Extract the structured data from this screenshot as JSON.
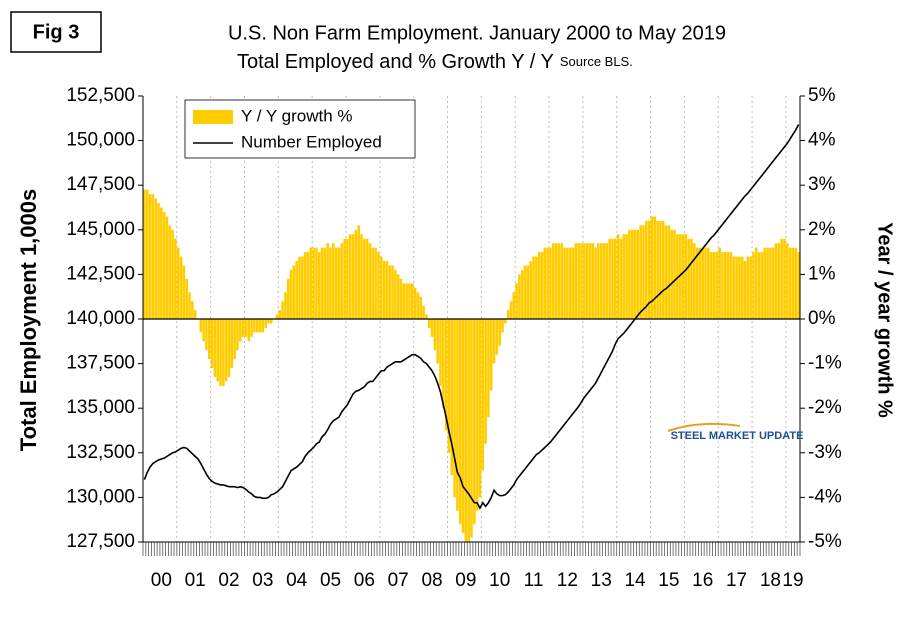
{
  "figure_label": "Fig 3",
  "chart_data": {
    "type": "combo",
    "title": "U.S. Non Farm Employment. January 2000 to May 2019",
    "subtitle": "Total Employed and % Growth Y / Y",
    "source": "Source BLS.",
    "y_label": "Total Employment 1,000s",
    "y2_label": "Year / year growth %",
    "logo": "STEEL MARKET UPDATE",
    "legend": "top-left",
    "ylim": [
      127500,
      152500
    ],
    "yticks": [
      {
        "value": 127500,
        "label": "127,500"
      },
      {
        "value": 130000,
        "label": "130,000"
      },
      {
        "value": 132500,
        "label": "132,500"
      },
      {
        "value": 135000,
        "label": "135,000"
      },
      {
        "value": 137500,
        "label": "137,500"
      },
      {
        "value": 140000,
        "label": "140,000"
      },
      {
        "value": 142500,
        "label": "142,500"
      },
      {
        "value": 145000,
        "label": "145,000"
      },
      {
        "value": 147500,
        "label": "147,500"
      },
      {
        "value": 150000,
        "label": "150,000"
      },
      {
        "value": 152500,
        "label": "152,500"
      }
    ],
    "y2lim": [
      -5,
      5
    ],
    "y2ticks": [
      {
        "value": -5,
        "label": "-5%"
      },
      {
        "value": -4,
        "label": "-4%"
      },
      {
        "value": -3,
        "label": "-3%"
      },
      {
        "value": -2,
        "label": "-2%"
      },
      {
        "value": -1,
        "label": "-1%"
      },
      {
        "value": 0,
        "label": "0%"
      },
      {
        "value": 1,
        "label": "1%"
      },
      {
        "value": 2,
        "label": "2%"
      },
      {
        "value": 3,
        "label": "3%"
      },
      {
        "value": 4,
        "label": "4%"
      },
      {
        "value": 5,
        "label": "5%"
      }
    ],
    "categories": [
      null,
      null,
      null,
      null,
      null,
      null,
      "00",
      null,
      null,
      null,
      null,
      null,
      null,
      null,
      null,
      null,
      null,
      null,
      "01",
      null,
      null,
      null,
      null,
      null,
      null,
      null,
      null,
      null,
      null,
      null,
      "02",
      null,
      null,
      null,
      null,
      null,
      null,
      null,
      null,
      null,
      null,
      null,
      "03",
      null,
      null,
      null,
      null,
      null,
      null,
      null,
      null,
      null,
      null,
      null,
      "04",
      null,
      null,
      null,
      null,
      null,
      null,
      null,
      null,
      null,
      null,
      null,
      "05",
      null,
      null,
      null,
      null,
      null,
      null,
      null,
      null,
      null,
      null,
      null,
      "06",
      null,
      null,
      null,
      null,
      null,
      null,
      null,
      null,
      null,
      null,
      null,
      "07",
      null,
      null,
      null,
      null,
      null,
      null,
      null,
      null,
      null,
      null,
      null,
      "08",
      null,
      null,
      null,
      null,
      null,
      null,
      null,
      null,
      null,
      null,
      null,
      "09",
      null,
      null,
      null,
      null,
      null,
      null,
      null,
      null,
      null,
      null,
      null,
      "10",
      null,
      null,
      null,
      null,
      null,
      null,
      null,
      null,
      null,
      null,
      null,
      "11",
      null,
      null,
      null,
      null,
      null,
      null,
      null,
      null,
      null,
      null,
      null,
      "12",
      null,
      null,
      null,
      null,
      null,
      null,
      null,
      null,
      null,
      null,
      null,
      "13",
      null,
      null,
      null,
      null,
      null,
      null,
      null,
      null,
      null,
      null,
      null,
      "14",
      null,
      null,
      null,
      null,
      null,
      null,
      null,
      null,
      null,
      null,
      null,
      "15",
      null,
      null,
      null,
      null,
      null,
      null,
      null,
      null,
      null,
      null,
      null,
      "16",
      null,
      null,
      null,
      null,
      null,
      null,
      null,
      null,
      null,
      null,
      null,
      "17",
      null,
      null,
      null,
      null,
      null,
      null,
      null,
      null,
      null,
      null,
      null,
      "18",
      null,
      null,
      null,
      null,
      null,
      null,
      null,
      "19",
      null,
      null
    ],
    "series": [
      {
        "name": "Y / Y growth %",
        "type": "bar",
        "axis": "y2",
        "color": "#FFCC00",
        "values": [
          2.9,
          2.9,
          2.8,
          2.8,
          2.7,
          2.6,
          2.5,
          2.4,
          2.3,
          2.1,
          2.0,
          1.8,
          1.6,
          1.4,
          1.2,
          0.9,
          0.6,
          0.4,
          0.2,
          0.0,
          -0.3,
          -0.5,
          -0.7,
          -0.9,
          -1.1,
          -1.3,
          -1.4,
          -1.5,
          -1.5,
          -1.4,
          -1.3,
          -1.1,
          -0.9,
          -0.7,
          -0.5,
          -0.4,
          -0.4,
          -0.5,
          -0.4,
          -0.3,
          -0.3,
          -0.3,
          -0.3,
          -0.2,
          -0.1,
          -0.1,
          0.0,
          0.1,
          0.2,
          0.4,
          0.6,
          0.9,
          1.1,
          1.2,
          1.3,
          1.4,
          1.4,
          1.5,
          1.5,
          1.6,
          1.6,
          1.6,
          1.5,
          1.6,
          1.6,
          1.7,
          1.6,
          1.7,
          1.6,
          1.6,
          1.7,
          1.8,
          1.8,
          1.9,
          1.9,
          2.0,
          2.1,
          1.9,
          1.8,
          1.8,
          1.7,
          1.6,
          1.6,
          1.5,
          1.4,
          1.3,
          1.3,
          1.2,
          1.2,
          1.1,
          1.0,
          0.9,
          0.8,
          0.8,
          0.8,
          0.8,
          0.7,
          0.6,
          0.5,
          0.3,
          0.1,
          -0.2,
          -0.4,
          -0.7,
          -1.0,
          -1.5,
          -2.0,
          -2.5,
          -3.0,
          -3.5,
          -4.0,
          -4.3,
          -4.6,
          -4.8,
          -5.0,
          -5.0,
          -4.9,
          -4.6,
          -4.3,
          -4.0,
          -3.4,
          -2.8,
          -2.2,
          -1.6,
          -1.0,
          -0.8,
          -0.6,
          -0.3,
          -0.1,
          0.2,
          0.4,
          0.6,
          0.8,
          1.0,
          1.1,
          1.2,
          1.2,
          1.3,
          1.4,
          1.4,
          1.5,
          1.5,
          1.6,
          1.6,
          1.6,
          1.7,
          1.7,
          1.7,
          1.7,
          1.6,
          1.6,
          1.6,
          1.6,
          1.7,
          1.7,
          1.7,
          1.7,
          1.7,
          1.7,
          1.7,
          1.6,
          1.7,
          1.7,
          1.7,
          1.7,
          1.8,
          1.8,
          1.8,
          1.9,
          1.8,
          1.9,
          1.9,
          2.0,
          2.0,
          2.0,
          2.0,
          2.1,
          2.1,
          2.2,
          2.2,
          2.3,
          2.3,
          2.2,
          2.2,
          2.2,
          2.1,
          2.1,
          2.0,
          2.0,
          1.9,
          1.9,
          1.9,
          1.9,
          1.8,
          1.8,
          1.7,
          1.6,
          1.6,
          1.6,
          1.6,
          1.6,
          1.5,
          1.5,
          1.5,
          1.6,
          1.5,
          1.5,
          1.5,
          1.5,
          1.4,
          1.4,
          1.4,
          1.4,
          1.3,
          1.4,
          1.4,
          1.5,
          1.6,
          1.5,
          1.5,
          1.6,
          1.6,
          1.6,
          1.6,
          1.7,
          1.7,
          1.8,
          1.8,
          1.7,
          1.6,
          1.6,
          1.6,
          1.5
        ]
      },
      {
        "name": "Number Employed",
        "type": "line",
        "axis": "y",
        "color": "#000000",
        "values": [
          131000,
          131400,
          131700,
          131900,
          132000,
          132100,
          132150,
          132200,
          132300,
          132400,
          132500,
          132550,
          132650,
          132750,
          132800,
          132750,
          132600,
          132450,
          132300,
          132150,
          131900,
          131600,
          131300,
          131050,
          130900,
          130800,
          130750,
          130700,
          130700,
          130650,
          130600,
          130600,
          130600,
          130550,
          130600,
          130550,
          130450,
          130300,
          130200,
          130050,
          130000,
          130000,
          129950,
          129950,
          130000,
          130150,
          130200,
          130300,
          130450,
          130600,
          130900,
          131200,
          131500,
          131600,
          131700,
          131850,
          132000,
          132300,
          132500,
          132650,
          132800,
          133000,
          133100,
          133400,
          133550,
          133800,
          134100,
          134300,
          134400,
          134500,
          134800,
          135000,
          135200,
          135500,
          135800,
          135950,
          136000,
          136100,
          136200,
          136400,
          136500,
          136500,
          136700,
          136900,
          137100,
          137100,
          137300,
          137400,
          137500,
          137600,
          137600,
          137600,
          137700,
          137800,
          137900,
          138000,
          138000,
          137900,
          137800,
          137600,
          137500,
          137300,
          137100,
          136800,
          136400,
          135900,
          135200,
          134500,
          133700,
          133000,
          132200,
          131400,
          131100,
          130600,
          130400,
          130200,
          129950,
          129700,
          129700,
          129400,
          129700,
          129500,
          129700,
          130000,
          130400,
          130200,
          130100,
          130100,
          130150,
          130300,
          130500,
          130700,
          131000,
          131200,
          131400,
          131600,
          131800,
          132000,
          132200,
          132400,
          132500,
          132650,
          132800,
          132950,
          133100,
          133300,
          133500,
          133700,
          133900,
          134100,
          134300,
          134500,
          134700,
          134900,
          135100,
          135350,
          135600,
          135800,
          136000,
          136200,
          136400,
          136700,
          137000,
          137300,
          137600,
          137900,
          138200,
          138600,
          138900,
          139050,
          139200,
          139400,
          139600,
          139800,
          140000,
          140200,
          140400,
          140550,
          140700,
          140900,
          141000,
          141150,
          141300,
          141450,
          141600,
          141700,
          141850,
          142000,
          142150,
          142300,
          142450,
          142600,
          142750,
          142950,
          143150,
          143350,
          143550,
          143750,
          143950,
          144150,
          144350,
          144550,
          144700,
          144900,
          145100,
          145300,
          145500,
          145700,
          145900,
          146100,
          146300,
          146500,
          146700,
          146900,
          147050,
          147250,
          147450,
          147650,
          147850,
          148050,
          148250,
          148450,
          148650,
          148850,
          149050,
          149250,
          149450,
          149650,
          149850,
          150100,
          150350,
          150600,
          150900
        ]
      }
    ]
  }
}
